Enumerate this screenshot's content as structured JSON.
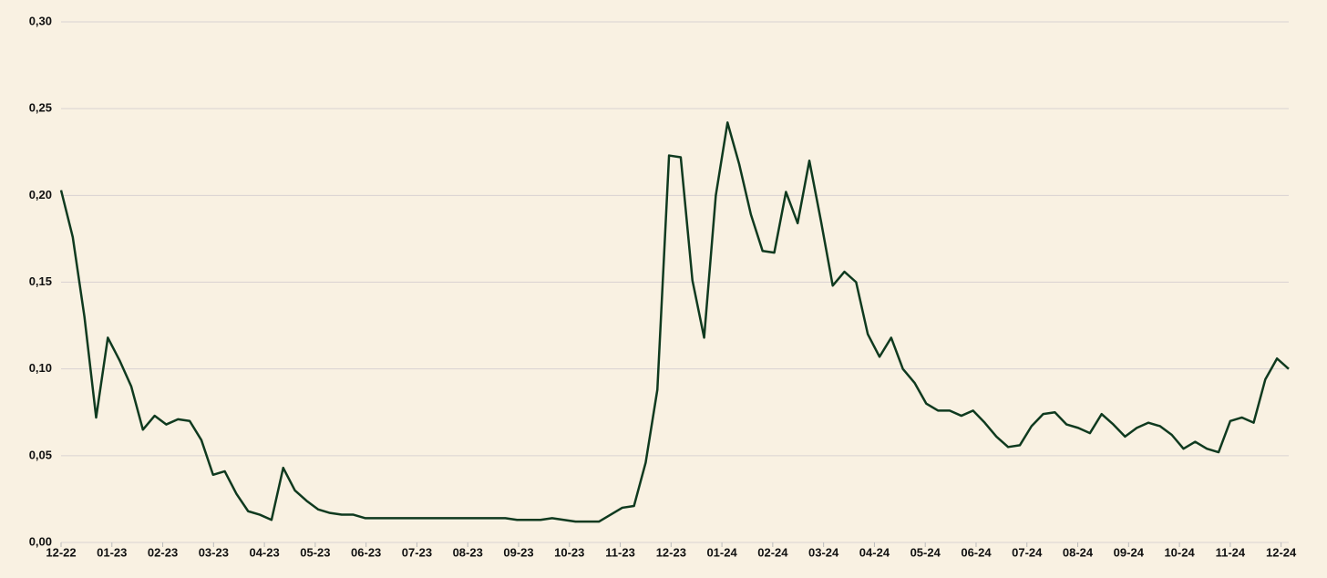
{
  "chart_data": {
    "type": "line",
    "x": [
      0,
      0.23,
      0.46,
      0.69,
      0.92,
      1.15,
      1.38,
      1.61,
      1.84,
      2.07,
      2.3,
      2.53,
      2.76,
      2.99,
      3.22,
      3.45,
      3.68,
      3.91,
      4.14,
      4.37,
      4.6,
      4.83,
      5.06,
      5.29,
      5.52,
      5.75,
      5.98,
      6.21,
      6.44,
      6.67,
      6.9,
      7.13,
      7.36,
      7.59,
      7.82,
      8.05,
      8.28,
      8.51,
      8.74,
      8.97,
      9.2,
      9.43,
      9.66,
      9.89,
      10.12,
      10.35,
      10.58,
      10.81,
      11.04,
      11.27,
      11.5,
      11.73,
      11.96,
      12.19,
      12.42,
      12.65,
      12.88,
      13.11,
      13.34,
      13.57,
      13.8,
      14.03,
      14.26,
      14.49,
      14.72,
      14.95,
      15.18,
      15.41,
      15.64,
      15.87,
      16.1,
      16.33,
      16.56,
      16.79,
      17.02,
      17.25,
      17.48,
      17.71,
      17.94,
      18.17,
      18.4,
      18.63,
      18.86,
      19.09,
      19.32,
      19.55,
      19.78,
      20.01,
      20.24,
      20.47,
      20.7,
      20.93,
      21.16,
      21.39,
      21.62,
      21.85,
      22.08,
      22.31,
      22.54,
      22.77,
      23,
      23.23,
      23.46,
      23.69,
      23.92,
      24.15
    ],
    "series": [
      {
        "color": "#0f3a1f",
        "values": [
          0.203,
          0.176,
          0.13,
          0.072,
          0.118,
          0.105,
          0.09,
          0.065,
          0.073,
          0.068,
          0.071,
          0.07,
          0.059,
          0.039,
          0.041,
          0.028,
          0.018,
          0.016,
          0.013,
          0.043,
          0.03,
          0.024,
          0.019,
          0.017,
          0.016,
          0.016,
          0.014,
          0.014,
          0.014,
          0.014,
          0.014,
          0.014,
          0.014,
          0.014,
          0.014,
          0.014,
          0.014,
          0.014,
          0.014,
          0.013,
          0.013,
          0.013,
          0.014,
          0.013,
          0.012,
          0.012,
          0.012,
          0.016,
          0.02,
          0.021,
          0.046,
          0.088,
          0.223,
          0.222,
          0.151,
          0.118,
          0.2,
          0.242,
          0.218,
          0.189,
          0.168,
          0.167,
          0.202,
          0.184,
          0.22,
          0.185,
          0.148,
          0.156,
          0.15,
          0.12,
          0.107,
          0.118,
          0.1,
          0.092,
          0.08,
          0.076,
          0.076,
          0.073,
          0.076,
          0.069,
          0.061,
          0.055,
          0.056,
          0.067,
          0.074,
          0.075,
          0.068,
          0.066,
          0.063,
          0.074,
          0.068,
          0.061,
          0.066,
          0.069,
          0.067,
          0.062,
          0.054,
          0.058,
          0.054,
          0.052,
          0.07,
          0.072,
          0.069,
          0.094,
          0.106,
          0.1
        ]
      }
    ],
    "xlim": [
      0,
      24.15
    ],
    "xticks": [
      {
        "value": 0,
        "label": "12-22"
      },
      {
        "value": 1,
        "label": "01-23"
      },
      {
        "value": 2,
        "label": "02-23"
      },
      {
        "value": 3,
        "label": "03-23"
      },
      {
        "value": 4,
        "label": "04-23"
      },
      {
        "value": 5,
        "label": "05-23"
      },
      {
        "value": 6,
        "label": "06-23"
      },
      {
        "value": 7,
        "label": "07-23"
      },
      {
        "value": 8,
        "label": "08-23"
      },
      {
        "value": 9,
        "label": "09-23"
      },
      {
        "value": 10,
        "label": "10-23"
      },
      {
        "value": 11,
        "label": "11-23"
      },
      {
        "value": 12,
        "label": "12-23"
      },
      {
        "value": 13,
        "label": "01-24"
      },
      {
        "value": 14,
        "label": "02-24"
      },
      {
        "value": 15,
        "label": "03-24"
      },
      {
        "value": 16,
        "label": "04-24"
      },
      {
        "value": 17,
        "label": "05-24"
      },
      {
        "value": 18,
        "label": "06-24"
      },
      {
        "value": 19,
        "label": "07-24"
      },
      {
        "value": 20,
        "label": "08-24"
      },
      {
        "value": 21,
        "label": "09-24"
      },
      {
        "value": 22,
        "label": "10-24"
      },
      {
        "value": 23,
        "label": "11-24"
      },
      {
        "value": 24,
        "label": "12-24"
      }
    ],
    "ylim": [
      0,
      0.3
    ],
    "yticks": [
      {
        "value": 0,
        "label": "0,00"
      },
      {
        "value": 0.05,
        "label": "0,05"
      },
      {
        "value": 0.1,
        "label": "0,10"
      },
      {
        "value": 0.15,
        "label": "0,15"
      },
      {
        "value": 0.2,
        "label": "0,20"
      },
      {
        "value": 0.25,
        "label": "0,25"
      },
      {
        "value": 0.3,
        "label": "0,30"
      }
    ],
    "grid": true
  }
}
